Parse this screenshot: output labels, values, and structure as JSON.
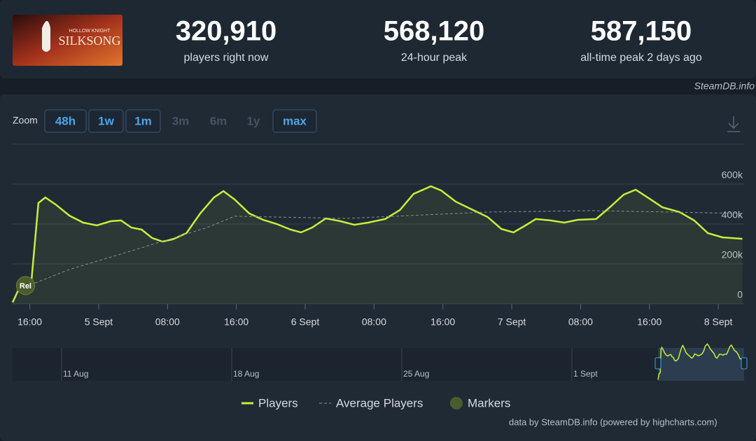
{
  "header": {
    "logo_top": "HOLLOW KNIGHT",
    "logo_main": "SILKSONG",
    "stats": [
      {
        "value": "320,910",
        "caption": "players right now"
      },
      {
        "value": "568,120",
        "caption": "24-hour peak"
      },
      {
        "value": "587,150",
        "caption": "all-time peak 2 days ago"
      }
    ]
  },
  "watermark": "SteamDB.info",
  "zoom": {
    "label": "Zoom",
    "buttons": [
      {
        "label": "48h",
        "enabled": true
      },
      {
        "label": "1w",
        "enabled": true
      },
      {
        "label": "1m",
        "enabled": true
      },
      {
        "label": "3m",
        "enabled": false
      },
      {
        "label": "6m",
        "enabled": false
      },
      {
        "label": "1y",
        "enabled": false
      },
      {
        "label": "max",
        "enabled": true
      }
    ]
  },
  "chart_data": {
    "type": "line",
    "series": [
      {
        "name": "Players",
        "color": "#c6ee3c",
        "x": [
          14,
          15,
          16.2,
          17,
          17.8,
          19,
          20.6,
          22.2,
          23.8,
          25.4,
          26.6,
          27.8,
          29,
          30.2,
          31.4,
          32.6,
          34.2,
          35.8,
          37.4,
          38.5,
          39.8,
          41.5,
          43.1,
          44.7,
          46.3,
          47.5,
          48.8,
          50.4,
          52.1,
          53.7,
          55.3,
          57.3,
          59,
          60.6,
          62.6,
          63.8,
          65.5,
          67.5,
          69.2,
          70.8,
          72.2,
          73.6,
          74.8,
          76.5,
          78.1,
          79.7,
          81.8,
          83.4,
          85,
          86.4,
          87.9,
          89.5,
          91.5,
          93.2,
          94.8,
          96.5,
          98.8
        ],
        "values": [
          7000,
          100000,
          120000,
          505000,
          533000,
          498000,
          442000,
          407000,
          393000,
          414000,
          418000,
          382000,
          372000,
          330000,
          312000,
          323000,
          354000,
          453000,
          533000,
          565000,
          523000,
          453000,
          421000,
          400000,
          372000,
          358000,
          382000,
          428000,
          414000,
          396000,
          407000,
          425000,
          470000,
          551000,
          589000,
          568000,
          512000,
          470000,
          435000,
          375000,
          358000,
          393000,
          425000,
          418000,
          407000,
          421000,
          425000,
          484000,
          547000,
          572000,
          530000,
          484000,
          460000,
          418000,
          354000,
          333000,
          326000
        ]
      },
      {
        "name": "Average Players",
        "color": "#8c8c8c",
        "dashed": true,
        "x": [
          15,
          20.6,
          28.7,
          36.6,
          39.8,
          52.8,
          69.2,
          81.3,
          98.8
        ],
        "values": [
          77000,
          172000,
          277000,
          382000,
          439000,
          428000,
          460000,
          467000,
          453000
        ]
      }
    ],
    "markers": [
      {
        "label": "Rel",
        "x": 15.5
      }
    ],
    "marker_legend": "Markers",
    "xlim": [
      14,
      99
    ],
    "xticks": [
      {
        "value": 16,
        "label": "16:00"
      },
      {
        "value": 24,
        "label": "5 Sept"
      },
      {
        "value": 32,
        "label": "08:00"
      },
      {
        "value": 40,
        "label": "16:00"
      },
      {
        "value": 48,
        "label": "6 Sept"
      },
      {
        "value": 56,
        "label": "08:00"
      },
      {
        "value": 64,
        "label": "16:00"
      },
      {
        "value": 72,
        "label": "7 Sept"
      },
      {
        "value": 80,
        "label": "08:00"
      },
      {
        "value": 88,
        "label": "16:00"
      },
      {
        "value": 96,
        "label": "8 Sept"
      }
    ],
    "ylim": [
      0,
      800000
    ],
    "yticks": [
      0,
      {
        "value": 200000,
        "label": "200k"
      },
      {
        "value": 400000,
        "label": "400k"
      },
      {
        "value": 600000,
        "label": "600k"
      }
    ],
    "grid": true,
    "navigator_labels": [
      "11 Aug",
      "18 Aug",
      "25 Aug",
      "1 Sept"
    ]
  },
  "credits": "data by SteamDB.info (powered by highcharts.com)"
}
